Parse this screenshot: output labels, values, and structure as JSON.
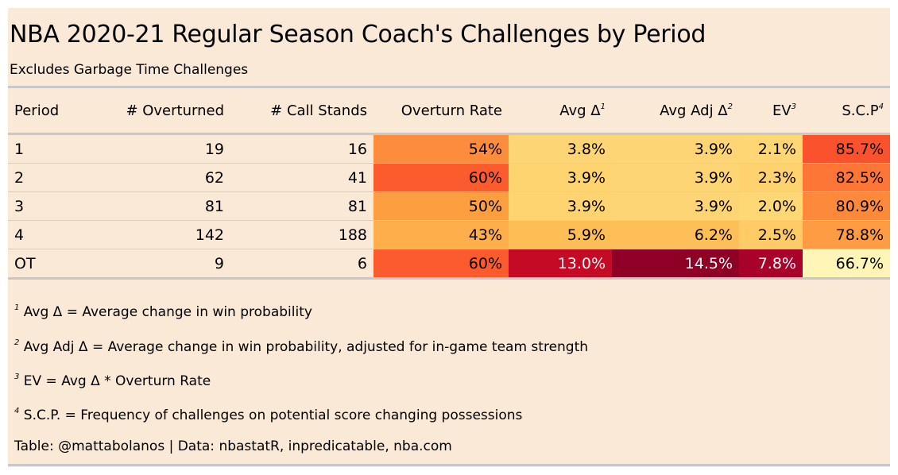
{
  "title": "NBA 2020-21 Regular Season Coach's Challenges by Period",
  "subtitle": "Excludes Garbage Time Challenges",
  "columns": [
    {
      "label": "Period",
      "sup": ""
    },
    {
      "label": "# Overturned",
      "sup": ""
    },
    {
      "label": "# Call Stands",
      "sup": ""
    },
    {
      "label": "Overturn Rate",
      "sup": ""
    },
    {
      "label": "Avg Δ",
      "sup": "1"
    },
    {
      "label": "Avg Adj Δ",
      "sup": "2"
    },
    {
      "label": "EV",
      "sup": "3"
    },
    {
      "label": "S.C.P",
      "sup": "4"
    }
  ],
  "chart_data": {
    "type": "table",
    "rows": [
      {
        "period": "1",
        "overturned": "19",
        "call_stands": "16",
        "overturn_rate": "54%",
        "avg_delta": "3.8%",
        "avg_adj_delta": "3.9%",
        "ev": "2.1%",
        "scp": "85.7%"
      },
      {
        "period": "2",
        "overturned": "62",
        "call_stands": "41",
        "overturn_rate": "60%",
        "avg_delta": "3.9%",
        "avg_adj_delta": "3.9%",
        "ev": "2.3%",
        "scp": "82.5%"
      },
      {
        "period": "3",
        "overturned": "81",
        "call_stands": "81",
        "overturn_rate": "50%",
        "avg_delta": "3.9%",
        "avg_adj_delta": "3.9%",
        "ev": "2.0%",
        "scp": "80.9%"
      },
      {
        "period": "4",
        "overturned": "142",
        "call_stands": "188",
        "overturn_rate": "43%",
        "avg_delta": "5.9%",
        "avg_adj_delta": "6.2%",
        "ev": "2.5%",
        "scp": "78.8%"
      },
      {
        "period": "OT",
        "overturned": "9",
        "call_stands": "6",
        "overturn_rate": "60%",
        "avg_delta": "13.0%",
        "avg_adj_delta": "14.5%",
        "ev": "7.8%",
        "scp": "66.7%"
      }
    ],
    "cell_colors": {
      "overturn_rate": [
        "#fd8d3c",
        "#fc5b2e",
        "#fd9f40",
        "#feae4b",
        "#fc5b2e"
      ],
      "avg_delta": [
        "#fed574",
        "#fed470",
        "#fed470",
        "#febe56",
        "#c40a24"
      ],
      "avg_adj_delta": [
        "#fed574",
        "#fed574",
        "#fed574",
        "#febf58",
        "#8f0026"
      ],
      "ev": [
        "#fed774",
        "#fed26e",
        "#fed875",
        "#fecb66",
        "#a8012a"
      ],
      "scp": [
        "#f9522d",
        "#fd7636",
        "#fd8a3b",
        "#fe9c43",
        "#fff5b6"
      ]
    },
    "light_text_cells": {
      "avg_delta": [
        false,
        false,
        false,
        false,
        true
      ],
      "avg_adj_delta": [
        false,
        false,
        false,
        false,
        true
      ],
      "ev": [
        false,
        false,
        false,
        false,
        true
      ]
    }
  },
  "footnotes": [
    {
      "sup": "1",
      "text": "Avg Δ = Average change in win probability"
    },
    {
      "sup": "2",
      "text": "Avg Adj Δ = Average change in win probability, adjusted for in-game team strength"
    },
    {
      "sup": "3",
      "text": "EV = Avg Δ * Overturn Rate"
    },
    {
      "sup": "4",
      "text": "S.C.P. = Frequency of challenges on potential score changing possessions"
    }
  ],
  "source": "Table: @mattabolanos | Data: nbastatR, inpredicatable, nba.com"
}
